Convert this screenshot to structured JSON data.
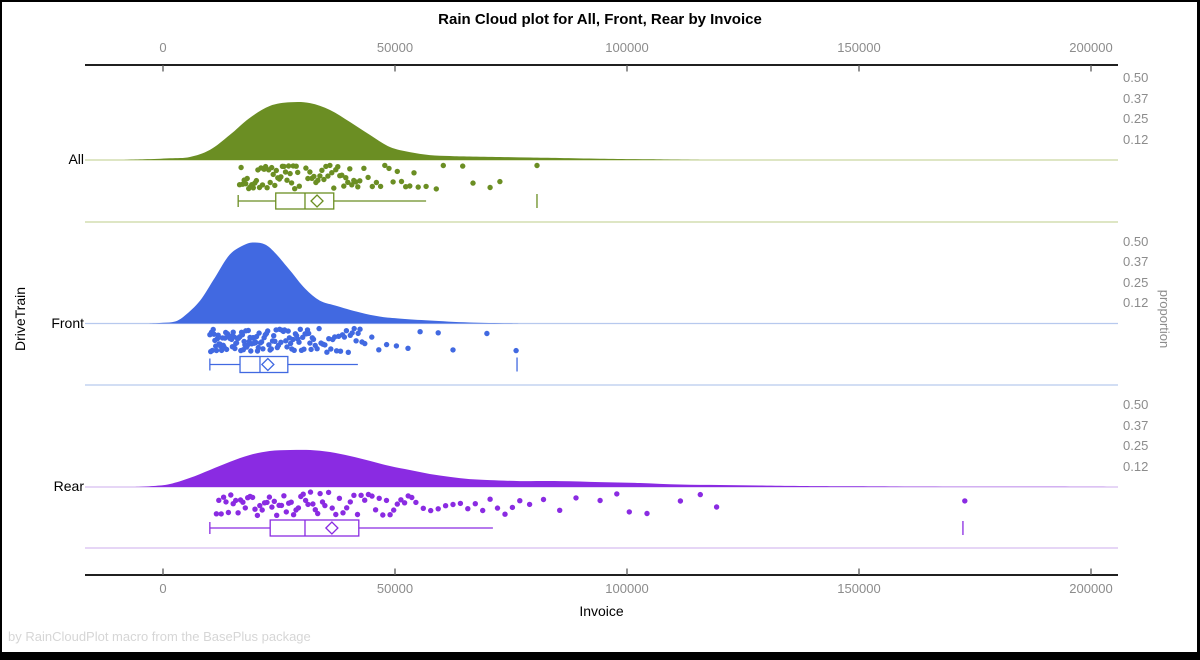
{
  "title": "Rain Cloud plot for All, Front, Rear by Invoice",
  "footnote": "by RainCloudPlot macro from the BasePlus package",
  "axes": {
    "x": {
      "label": "Invoice",
      "tick_values": [
        0,
        50000,
        100000,
        150000,
        200000
      ],
      "tick_labels": [
        "0",
        "50000",
        "100000",
        "150000",
        "200000"
      ]
    },
    "y_left": {
      "label": "DriveTrain",
      "categories": [
        "All",
        "Front",
        "Rear"
      ]
    },
    "y_right": {
      "label": "proportion",
      "tick_labels": [
        "0.50",
        "0.37",
        "0.25",
        "0.12"
      ],
      "tick_values": [
        0.5,
        0.375,
        0.25,
        0.125
      ]
    }
  },
  "chart_data": {
    "type": "raincloud",
    "xlabel": "Invoice",
    "xlim": [
      -17000,
      206000
    ],
    "proportion_ticks": [
      0.5,
      0.375,
      0.25,
      0.125
    ],
    "groups": [
      {
        "name": "All",
        "color": "#6B8E23",
        "light_color": "#c9d6a0",
        "density": {
          "x": [
            -9000,
            -4000,
            1500,
            5800,
            10100,
            14400,
            18700,
            23000,
            27400,
            31700,
            36000,
            40300,
            44600,
            48900,
            53200,
            57500,
            61800,
            66100,
            72600,
            79100,
            85500,
            94200,
            105000,
            115700
          ],
          "p": [
            0,
            0.004,
            0.01,
            0.018,
            0.061,
            0.152,
            0.255,
            0.327,
            0.35,
            0.345,
            0.303,
            0.23,
            0.152,
            0.079,
            0.048,
            0.03,
            0.024,
            0.021,
            0.018,
            0.015,
            0.012,
            0.008,
            0.004,
            0
          ]
        },
        "points_spec": [
          [
            16500,
            330,
            40
          ],
          [
            30800,
            430,
            28
          ],
          [
            43300,
            900,
            14
          ],
          56700,
          58900,
          60400,
          64600,
          66800,
          70500,
          72600,
          80600
        ],
        "box": {
          "whisker_low": 16200,
          "q1": 24300,
          "median": 30600,
          "q3": 36800,
          "whisker_high": 56700,
          "mean": 33200,
          "far_value": 80600
        }
      },
      {
        "name": "Front",
        "color": "#4169E1",
        "light_color": "#b7c9ee",
        "density": {
          "x": [
            -3000,
            0,
            2600,
            4700,
            8000,
            11200,
            14400,
            17700,
            19800,
            22000,
            24100,
            27400,
            30600,
            33800,
            37100,
            42400,
            46800,
            51100,
            57500,
            66100,
            76900
          ],
          "p": [
            0,
            0.004,
            0.012,
            0.048,
            0.139,
            0.279,
            0.418,
            0.479,
            0.491,
            0.479,
            0.43,
            0.321,
            0.212,
            0.139,
            0.109,
            0.067,
            0.042,
            0.03,
            0.018,
            0.006,
            0
          ]
        },
        "points_spec": [
          [
            10100,
            180,
            60
          ],
          [
            21000,
            260,
            45
          ],
          [
            32800,
            420,
            25
          ],
          43500,
          45000,
          46500,
          48200,
          50300,
          52800,
          55400,
          59300,
          62500,
          69800,
          76100
        ],
        "box": {
          "whisker_low": 10100,
          "q1": 16600,
          "median": 20900,
          "q3": 26900,
          "whisker_high": 42000,
          "mean": 22600,
          "far_value": 76300
        }
      },
      {
        "name": "Rear",
        "color": "#8A2BE2",
        "light_color": "#d8bdf0",
        "density": {
          "x": [
            -6000,
            -2000,
            1500,
            5800,
            10100,
            14400,
            18700,
            23000,
            27400,
            31700,
            36000,
            40300,
            44600,
            48900,
            53200,
            57500,
            61800,
            66100,
            70500,
            76900,
            85500,
            94200,
            102800,
            111400,
            120000,
            128600,
            137200,
            148000,
            169600,
            191100,
            205000
          ],
          "p": [
            0,
            0.006,
            0.018,
            0.055,
            0.103,
            0.152,
            0.194,
            0.218,
            0.224,
            0.224,
            0.212,
            0.188,
            0.158,
            0.127,
            0.103,
            0.079,
            0.061,
            0.048,
            0.042,
            0.036,
            0.036,
            0.03,
            0.024,
            0.015,
            0.012,
            0.009,
            0.006,
            0.004,
            0.002,
            0.001,
            0
          ]
        },
        "points_spec": [
          [
            11500,
            520,
            45
          ],
          [
            34900,
            780,
            25
          ],
          [
            54500,
            1600,
            15
          ],
          79000,
          82000,
          85500,
          89000,
          94200,
          97800,
          100500,
          104300,
          111500,
          115800,
          119300,
          172800
        ],
        "box": {
          "whisker_low": 10100,
          "q1": 23100,
          "median": 30600,
          "q3": 42200,
          "whisker_high": 71100,
          "mean": 36400,
          "far_value": 172400
        }
      }
    ]
  }
}
